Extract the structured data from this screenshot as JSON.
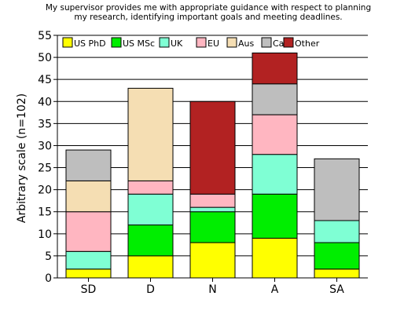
{
  "chart_data": {
    "type": "bar",
    "stacked": true,
    "title": "My supervisor provides me with appropriate guidance with respect to planning my research, identifying important goals and meeting deadlines.",
    "title_lines": [
      "My supervisor provides me with appropriate guidance with respect to planning",
      "my research, identifying important goals and meeting deadlines."
    ],
    "xlabel": "",
    "ylabel": "Arbitrary scale (n=102)",
    "ylim": [
      0,
      55
    ],
    "yticks": [
      0,
      5,
      10,
      15,
      20,
      25,
      30,
      35,
      40,
      45,
      50,
      55
    ],
    "grid": true,
    "legend_position": "top",
    "categories": [
      "SD",
      "D",
      "N",
      "A",
      "SA"
    ],
    "series": [
      {
        "name": "US PhD",
        "color": "#ffff00",
        "values": [
          2,
          5,
          8,
          9,
          2
        ]
      },
      {
        "name": "US MSc",
        "color": "#00ee00",
        "values": [
          0,
          7,
          7,
          10,
          6
        ]
      },
      {
        "name": "UK",
        "color": "#7fffd4",
        "values": [
          4,
          7,
          1,
          9,
          5
        ]
      },
      {
        "name": "EU",
        "color": "#ffb6c1",
        "values": [
          9,
          3,
          3,
          9,
          0
        ]
      },
      {
        "name": "Aus",
        "color": "#f5deb3",
        "values": [
          7,
          21,
          0,
          0,
          0
        ]
      },
      {
        "name": "Ca",
        "color": "#bebebe",
        "values": [
          7,
          0,
          0,
          7,
          14
        ]
      },
      {
        "name": "Other",
        "color": "#b22222",
        "values": [
          0,
          0,
          21,
          7,
          0
        ]
      }
    ]
  }
}
